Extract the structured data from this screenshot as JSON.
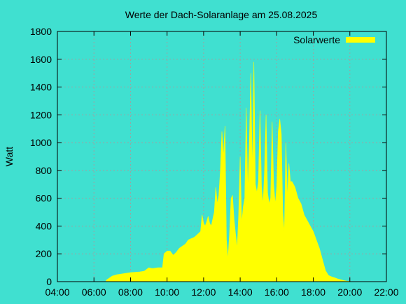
{
  "colors": {
    "background": "#40E0D0",
    "series": "#FFFF00",
    "grid": "#A0A0A0",
    "frame": "#000000"
  },
  "chart_data": {
    "type": "area",
    "title": "Werte der Dach-Solaranlage am 25.08.2025",
    "xlabel": "",
    "ylabel": "Watt",
    "grid": true,
    "legend_position": "top-right",
    "xlim": [
      "04:00",
      "22:00"
    ],
    "ylim": [
      0,
      1800
    ],
    "x_ticks": [
      "04:00",
      "06:00",
      "08:00",
      "10:00",
      "12:00",
      "14:00",
      "16:00",
      "18:00",
      "20:00",
      "22:00"
    ],
    "y_ticks": [
      "0",
      "200",
      "400",
      "600",
      "800",
      "1000",
      "1200",
      "1400",
      "1600",
      "1800"
    ],
    "series": [
      {
        "name": "Solarwerte",
        "x": [
          "06:40",
          "06:50",
          "07:00",
          "07:15",
          "07:30",
          "07:45",
          "08:00",
          "08:15",
          "08:30",
          "08:45",
          "09:00",
          "09:10",
          "09:15",
          "09:30",
          "09:45",
          "09:50",
          "10:00",
          "10:10",
          "10:20",
          "10:30",
          "10:40",
          "10:50",
          "11:00",
          "11:10",
          "11:20",
          "11:30",
          "11:40",
          "11:50",
          "11:55",
          "12:00",
          "12:05",
          "12:10",
          "12:15",
          "12:20",
          "12:25",
          "12:30",
          "12:35",
          "12:40",
          "12:45",
          "12:50",
          "12:55",
          "13:00",
          "13:05",
          "13:10",
          "13:15",
          "13:20",
          "13:25",
          "13:30",
          "13:35",
          "13:40",
          "13:45",
          "13:50",
          "13:55",
          "14:00",
          "14:05",
          "14:10",
          "14:15",
          "14:20",
          "14:25",
          "14:30",
          "14:35",
          "14:40",
          "14:45",
          "14:50",
          "14:55",
          "15:00",
          "15:05",
          "15:10",
          "15:15",
          "15:20",
          "15:25",
          "15:30",
          "15:35",
          "15:40",
          "15:45",
          "15:50",
          "15:55",
          "16:00",
          "16:05",
          "16:10",
          "16:15",
          "16:20",
          "16:25",
          "16:30",
          "16:35",
          "16:40",
          "16:45",
          "16:50",
          "16:55",
          "17:00",
          "17:10",
          "17:20",
          "17:30",
          "17:40",
          "17:50",
          "18:00",
          "18:10",
          "18:20",
          "18:30",
          "18:40",
          "18:50",
          "19:00",
          "19:10",
          "19:20",
          "19:30",
          "19:40",
          "19:50",
          "20:00",
          "20:05"
        ],
        "values": [
          10,
          25,
          40,
          50,
          55,
          60,
          65,
          68,
          70,
          75,
          100,
          95,
          95,
          100,
          100,
          200,
          220,
          220,
          190,
          210,
          240,
          255,
          270,
          300,
          310,
          320,
          340,
          360,
          480,
          420,
          400,
          430,
          470,
          420,
          400,
          450,
          500,
          680,
          560,
          620,
          800,
          1080,
          900,
          1120,
          300,
          160,
          350,
          600,
          620,
          450,
          340,
          240,
          480,
          900,
          420,
          540,
          600,
          1250,
          650,
          1000,
          1500,
          780,
          1580,
          700,
          640,
          720,
          1230,
          680,
          560,
          800,
          1200,
          640,
          560,
          600,
          1150,
          700,
          560,
          680,
          1080,
          1170,
          1060,
          500,
          350,
          1000,
          600,
          850,
          720,
          720,
          700,
          680,
          600,
          560,
          480,
          440,
          400,
          360,
          300,
          240,
          160,
          80,
          45,
          35,
          28,
          20,
          14,
          8,
          4,
          2,
          0
        ]
      }
    ]
  }
}
